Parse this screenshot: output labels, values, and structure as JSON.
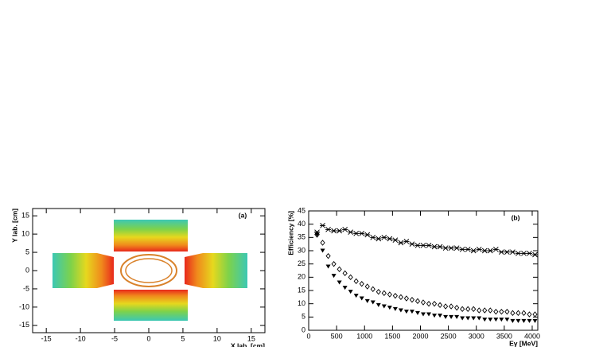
{
  "chart_data": [
    {
      "type": "density2d",
      "annotation": "(a)",
      "x_label": "X lab. [cm]",
      "y_label": "Y lab. [cm]",
      "xlim": [
        -17,
        17
      ],
      "ylim": [
        -17,
        17
      ],
      "xticks": [
        -15,
        -10,
        -5,
        0,
        5,
        10,
        15
      ],
      "yticks": [
        -15,
        -10,
        -5,
        0,
        5,
        10,
        15
      ]
    },
    {
      "type": "scatter",
      "annotation": "(b)",
      "x_label": "Eγ [MeV]",
      "y_label": "Efficiency [%]",
      "xlim": [
        0,
        4100
      ],
      "ylim": [
        0,
        45
      ],
      "xticks": [
        0,
        500,
        1000,
        1500,
        2000,
        2500,
        3000,
        3500,
        4000
      ],
      "yticks": [
        0,
        5,
        10,
        15,
        20,
        25,
        30,
        35,
        40,
        45
      ],
      "x": [
        150,
        250,
        350,
        450,
        550,
        650,
        750,
        850,
        950,
        1050,
        1150,
        1250,
        1350,
        1450,
        1550,
        1650,
        1750,
        1850,
        1950,
        2050,
        2150,
        2250,
        2350,
        2450,
        2550,
        2650,
        2750,
        2850,
        2950,
        3050,
        3150,
        3250,
        3350,
        3450,
        3550,
        3650,
        3750,
        3850,
        3950,
        4050
      ],
      "series": [
        {
          "marker": "star",
          "color": "#000000",
          "values": [
            37,
            39.5,
            38,
            37.5,
            37.5,
            38,
            37,
            36.5,
            36.5,
            36,
            35,
            34.5,
            35,
            34.5,
            34,
            33,
            33.5,
            32.5,
            32,
            32,
            32,
            31.5,
            31.5,
            31,
            31,
            31,
            30.5,
            30.5,
            30,
            30.5,
            30,
            30,
            30.5,
            29.5,
            29.5,
            29.5,
            29,
            29,
            29,
            28.5
          ]
        },
        {
          "marker": "diamond-open",
          "color": "#000000",
          "values": [
            36,
            33,
            28,
            25,
            23,
            21.5,
            20,
            18.5,
            17.5,
            16.5,
            15.5,
            14.5,
            14,
            13.5,
            13,
            12.5,
            12,
            11.5,
            11,
            10.5,
            10,
            10,
            9.5,
            9,
            9,
            8.5,
            8,
            8,
            8,
            7.5,
            7.5,
            7.5,
            7,
            7,
            7,
            6.5,
            6.5,
            6.5,
            6,
            6
          ]
        },
        {
          "marker": "triangle-down",
          "color": "#000000",
          "values": [
            36,
            30,
            24,
            20.5,
            18,
            16,
            14.5,
            13,
            12,
            11,
            10.5,
            9.5,
            9,
            8.5,
            8,
            7.5,
            7,
            7,
            6.5,
            6,
            6,
            5.5,
            5.5,
            5,
            5,
            5,
            4.5,
            4.5,
            4.5,
            4.5,
            4,
            4,
            4,
            4,
            4,
            3.5,
            3.5,
            3.5,
            3.5,
            3.5
          ]
        }
      ]
    }
  ]
}
